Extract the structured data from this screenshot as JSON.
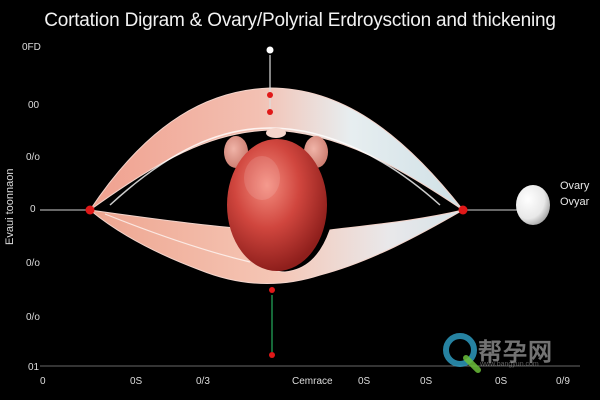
{
  "title": "Cortation Digram & Ovary/Polyrial  Erdroysction and thickening",
  "y_axis": {
    "title": "Evaui toonnaon",
    "ticks": [
      "0FD",
      "00",
      "0/o",
      "0",
      "0/o",
      "0/o",
      "01"
    ]
  },
  "x_axis": {
    "title": "Cemrace",
    "ticks": [
      "0",
      "0S",
      "0/3",
      "0S",
      "0S",
      "0S",
      "0/9"
    ]
  },
  "legend": {
    "line1": "Ovary",
    "line2": "Ovyar"
  },
  "watermark": {
    "text": "帮孕网",
    "sub": "www.bangyun.com"
  },
  "colors": {
    "background": "#000000",
    "uterus": "#e8a595",
    "ovary_mass": "#c8423d",
    "marker": "#e01818",
    "indicator_line": "#1e8a4a",
    "legend_ovary": "#ffffff"
  }
}
